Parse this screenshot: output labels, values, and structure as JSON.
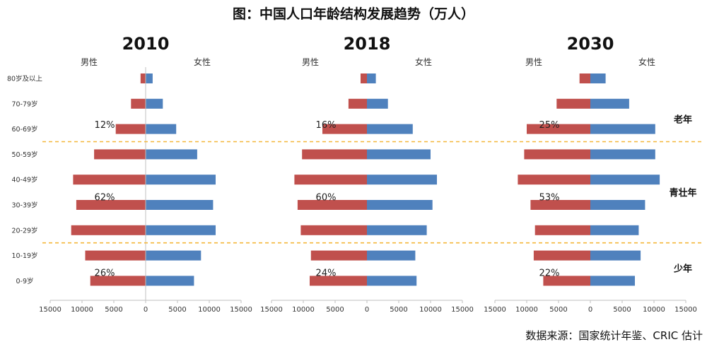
{
  "title": "图：中国人口年龄结构发展趋势（万人）",
  "source": "数据来源：国家统计年鉴、CRIC 估计",
  "colors": {
    "male": "#c0504d",
    "female": "#4f81bd",
    "divider": "#f4b73a"
  },
  "chart_data": {
    "type": "bar",
    "orientation": "horizontal-population-pyramid",
    "categories": [
      "80岁及以上",
      "70-79岁",
      "60-69岁",
      "50-59岁",
      "40-49岁",
      "30-39岁",
      "20-29岁",
      "10-19岁",
      "0-9岁"
    ],
    "male_label": "男性",
    "female_label": "女性",
    "xlim": [
      -15000,
      15000
    ],
    "xticks": [
      15000,
      10000,
      5000,
      0,
      5000,
      10000,
      15000
    ],
    "groups": [
      "老年",
      "青壮年",
      "少年"
    ],
    "panels": [
      {
        "year": "2010",
        "male": [
          800,
          2300,
          4700,
          8100,
          11400,
          10900,
          11700,
          9500,
          8700
        ],
        "female": [
          1100,
          2700,
          4800,
          8100,
          11000,
          10600,
          11000,
          8700,
          7600
        ],
        "group_percents": [
          "12%",
          "62%",
          "26%"
        ]
      },
      {
        "year": "2018",
        "male": [
          1000,
          2900,
          7000,
          10200,
          11400,
          10900,
          10400,
          8800,
          9000
        ],
        "female": [
          1400,
          3300,
          7200,
          10000,
          11000,
          10300,
          9400,
          7600,
          7800
        ],
        "group_percents": [
          "16%",
          "60%",
          "24%"
        ]
      },
      {
        "year": "2030",
        "male": [
          1700,
          5300,
          10000,
          10400,
          11400,
          9400,
          8700,
          8900,
          7400
        ],
        "female": [
          2400,
          6100,
          10200,
          10200,
          10900,
          8600,
          7600,
          7900,
          7000
        ],
        "group_percents": [
          "25%",
          "53%",
          "22%"
        ]
      }
    ]
  }
}
